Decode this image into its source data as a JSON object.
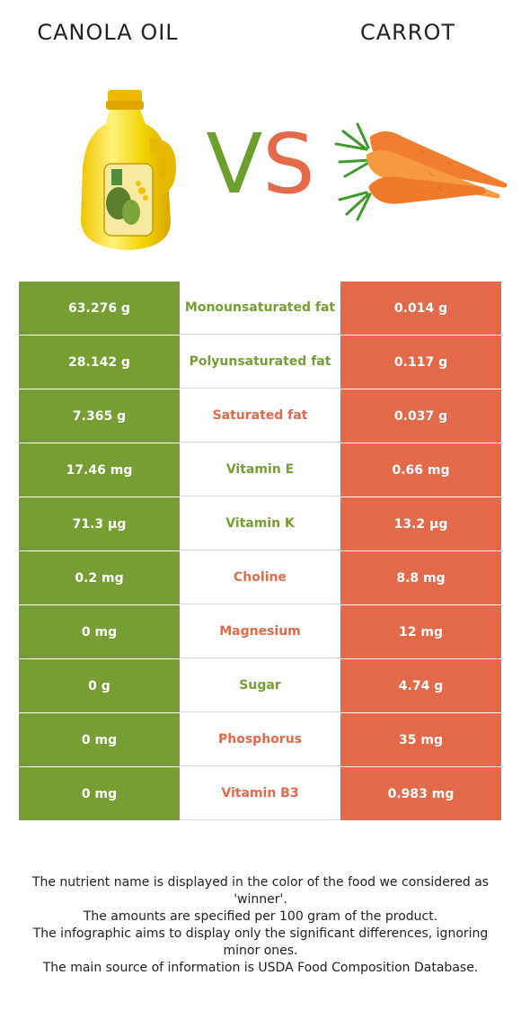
{
  "header": {
    "left_title": "CANOLA OIL",
    "right_title": "CARROT",
    "vs_v": "V",
    "vs_s": "S"
  },
  "colors": {
    "left_food": "#779e32",
    "right_food": "#e2694a"
  },
  "rows": [
    {
      "left": "63.276 g",
      "nutrient": "Monounsaturated fat",
      "right": "0.014 g",
      "winner": "left"
    },
    {
      "left": "28.142 g",
      "nutrient": "Polyunsaturated fat",
      "right": "0.117 g",
      "winner": "left"
    },
    {
      "left": "7.365 g",
      "nutrient": "Saturated fat",
      "right": "0.037 g",
      "winner": "right"
    },
    {
      "left": "17.46 mg",
      "nutrient": "Vitamin E",
      "right": "0.66 mg",
      "winner": "left"
    },
    {
      "left": "71.3 µg",
      "nutrient": "Vitamin K",
      "right": "13.2 µg",
      "winner": "left"
    },
    {
      "left": "0.2 mg",
      "nutrient": "Choline",
      "right": "8.8 mg",
      "winner": "right"
    },
    {
      "left": "0 mg",
      "nutrient": "Magnesium",
      "right": "12 mg",
      "winner": "right"
    },
    {
      "left": "0 g",
      "nutrient": "Sugar",
      "right": "4.74 g",
      "winner": "left"
    },
    {
      "left": "0 mg",
      "nutrient": "Phosphorus",
      "right": "35 mg",
      "winner": "right"
    },
    {
      "left": "0 mg",
      "nutrient": "Vitamin B3",
      "right": "0.983 mg",
      "winner": "right"
    }
  ],
  "footer": {
    "line1": "The nutrient name is displayed in the color of the food we considered as 'winner'.",
    "line2": "The amounts are specified per 100 gram of the product.",
    "line3": "The infographic aims to display only the significant differences, ignoring minor ones.",
    "line4": "The main source of information is USDA Food Composition Database."
  }
}
